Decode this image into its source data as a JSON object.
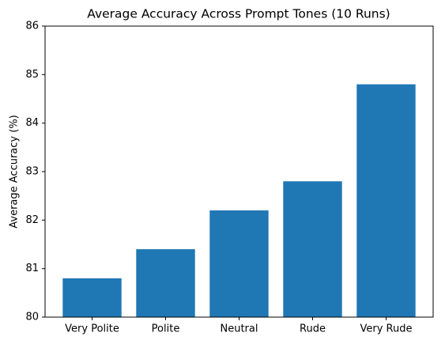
{
  "chart_data": {
    "type": "bar",
    "title": "Average Accuracy Across Prompt Tones (10 Runs)",
    "y_label": "Average Accuracy (%)",
    "categories": [
      "Very Polite",
      "Polite",
      "Neutral",
      "Rude",
      "Very Rude"
    ],
    "values": [
      80.8,
      81.4,
      82.2,
      82.8,
      84.8
    ],
    "color": "#1f77b4",
    "ylim": [
      80,
      86
    ],
    "yticks": [
      80,
      81,
      82,
      83,
      84,
      85,
      86
    ],
    "grid": false
  }
}
